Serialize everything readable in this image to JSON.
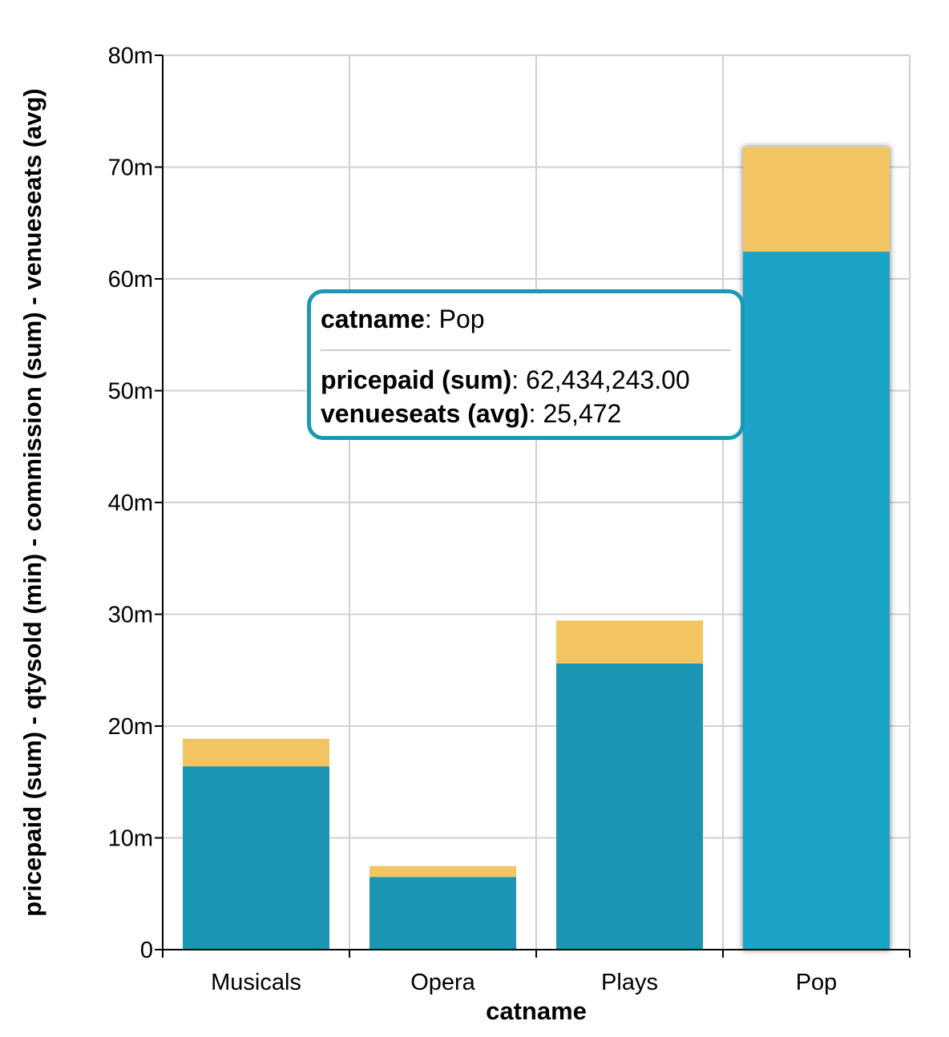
{
  "chart_data": {
    "type": "bar",
    "stacked": true,
    "categories": [
      "Musicals",
      "Opera",
      "Plays",
      "Pop"
    ],
    "series": [
      {
        "name": "pricepaid (sum)",
        "color": "#1a96b4",
        "values": [
          16400000,
          6500000,
          25600000,
          62434243
        ]
      },
      {
        "name": "commission (sum)",
        "color": "#f2c462",
        "values": [
          2460000,
          975000,
          3840000,
          9365136
        ]
      }
    ],
    "highlighted_category": "Pop",
    "highlight_color": "#1ca4c8",
    "xlabel": "catname",
    "ylabel": "pricepaid (sum) - qtysold (min) - commission (sum) - venueseats (avg)",
    "ylim": [
      0,
      80000000
    ],
    "yticks": [
      0,
      10000000,
      20000000,
      30000000,
      40000000,
      50000000,
      60000000,
      70000000,
      80000000
    ],
    "ytick_labels": [
      "0",
      "10m",
      "20m",
      "30m",
      "40m",
      "50m",
      "60m",
      "70m",
      "80m"
    ],
    "grid": true
  },
  "tooltip": {
    "title_key": "catname",
    "title_value": "Pop",
    "rows": [
      {
        "key": "pricepaid (sum)",
        "value": "62,434,243.00"
      },
      {
        "key": "venueseats (avg)",
        "value": "25,472"
      }
    ],
    "border_color": "#1a98b5"
  }
}
